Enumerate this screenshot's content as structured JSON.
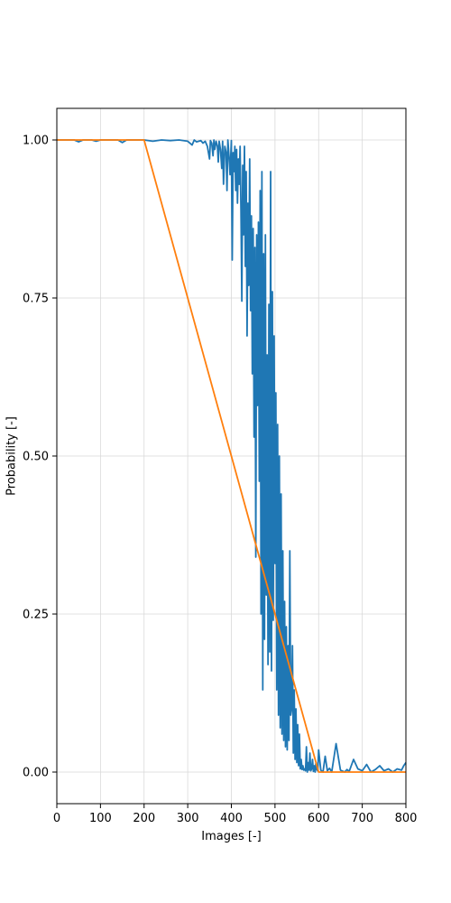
{
  "chart_data": {
    "type": "line",
    "xlabel": "Images [-]",
    "ylabel": "Probability [-]",
    "xlim": [
      0,
      800
    ],
    "ylim": [
      -0.05,
      1.05
    ],
    "xticks": [
      0,
      100,
      200,
      300,
      400,
      500,
      600,
      700,
      800
    ],
    "xtick_labels": [
      "0",
      "100",
      "200",
      "300",
      "400",
      "500",
      "600",
      "700",
      "800"
    ],
    "yticks": [
      0.0,
      0.25,
      0.5,
      0.75,
      1.0
    ],
    "ytick_labels": [
      "0.00",
      "0.25",
      "0.50",
      "0.75",
      "1.00"
    ],
    "grid": true,
    "legend": "none",
    "colors": {
      "series_1": "#1f77b4",
      "series_2": "#ff7f0e",
      "grid": "#d9d9d9"
    },
    "series": [
      {
        "color": "#1f77b4",
        "x": [
          0,
          40,
          50,
          60,
          80,
          90,
          100,
          120,
          140,
          150,
          160,
          180,
          200,
          220,
          240,
          260,
          280,
          300,
          310,
          315,
          320,
          330,
          335,
          340,
          345,
          350,
          352,
          355,
          358,
          360,
          362,
          365,
          368,
          370,
          372,
          375,
          378,
          380,
          382,
          385,
          388,
          390,
          392,
          395,
          397,
          400,
          402,
          404,
          406,
          408,
          410,
          412,
          414,
          416,
          418,
          420,
          422,
          424,
          426,
          428,
          430,
          432,
          434,
          436,
          438,
          440,
          442,
          444,
          446,
          448,
          450,
          452,
          454,
          456,
          458,
          460,
          462,
          464,
          466,
          468,
          470,
          472,
          474,
          476,
          478,
          480,
          482,
          484,
          486,
          488,
          490,
          492,
          494,
          496,
          498,
          500,
          502,
          504,
          506,
          508,
          510,
          512,
          514,
          516,
          518,
          520,
          522,
          524,
          526,
          528,
          530,
          532,
          534,
          536,
          538,
          540,
          542,
          544,
          546,
          548,
          550,
          552,
          554,
          556,
          558,
          560,
          562,
          564,
          566,
          568,
          570,
          572,
          574,
          576,
          578,
          580,
          582,
          584,
          586,
          588,
          590,
          592,
          594,
          596,
          598,
          600,
          605,
          610,
          615,
          620,
          625,
          630,
          640,
          650,
          660,
          665,
          670,
          680,
          690,
          700,
          710,
          720,
          730,
          740,
          750,
          760,
          770,
          780,
          790,
          795,
          800
        ],
        "y": [
          1.0,
          1.0,
          0.997,
          1.0,
          1.0,
          0.998,
          1.0,
          1.0,
          1.0,
          0.996,
          1.0,
          1.0,
          1.0,
          0.998,
          1.0,
          0.999,
          1.0,
          0.998,
          0.992,
          1.0,
          0.997,
          0.999,
          0.995,
          0.998,
          0.99,
          0.97,
          0.999,
          0.995,
          0.975,
          1.0,
          0.985,
          0.998,
          0.99,
          0.965,
          0.998,
          0.985,
          0.955,
          0.998,
          0.93,
          0.99,
          0.98,
          0.92,
          1.0,
          0.97,
          0.945,
          0.999,
          0.81,
          0.98,
          0.95,
          0.99,
          0.92,
          0.985,
          0.9,
          0.97,
          0.93,
          0.99,
          0.89,
          0.745,
          0.96,
          0.85,
          0.99,
          0.8,
          0.95,
          0.69,
          0.9,
          0.77,
          0.97,
          0.73,
          0.88,
          0.63,
          0.86,
          0.53,
          0.83,
          0.34,
          0.85,
          0.58,
          0.87,
          0.46,
          0.92,
          0.25,
          0.95,
          0.13,
          0.82,
          0.21,
          0.85,
          0.28,
          0.66,
          0.17,
          0.74,
          0.19,
          0.95,
          0.16,
          0.76,
          0.24,
          0.69,
          0.33,
          0.6,
          0.13,
          0.55,
          0.09,
          0.5,
          0.07,
          0.44,
          0.06,
          0.35,
          0.05,
          0.27,
          0.04,
          0.23,
          0.035,
          0.2,
          0.05,
          0.35,
          0.09,
          0.1,
          0.2,
          0.03,
          0.13,
          0.02,
          0.1,
          0.015,
          0.075,
          0.01,
          0.06,
          0.005,
          0.02,
          0.004,
          0.01,
          0.003,
          0.005,
          0.002,
          0.04,
          0.0,
          0.015,
          0.003,
          0.03,
          0.002,
          0.005,
          0.02,
          0.001,
          0.01,
          0.0,
          0.015,
          0.004,
          0.002,
          0.035,
          0.003,
          0.0,
          0.025,
          0.002,
          0.006,
          0.0,
          0.045,
          0.003,
          0.0,
          0.004,
          0.001,
          0.02,
          0.005,
          0.002,
          0.012,
          0.0,
          0.004,
          0.01,
          0.002,
          0.005,
          0.0,
          0.005,
          0.003,
          0.01,
          0.015
        ]
      },
      {
        "color": "#ff7f0e",
        "x": [
          0,
          200,
          600,
          800
        ],
        "y": [
          1.0,
          1.0,
          0.0,
          0.0
        ]
      }
    ]
  }
}
